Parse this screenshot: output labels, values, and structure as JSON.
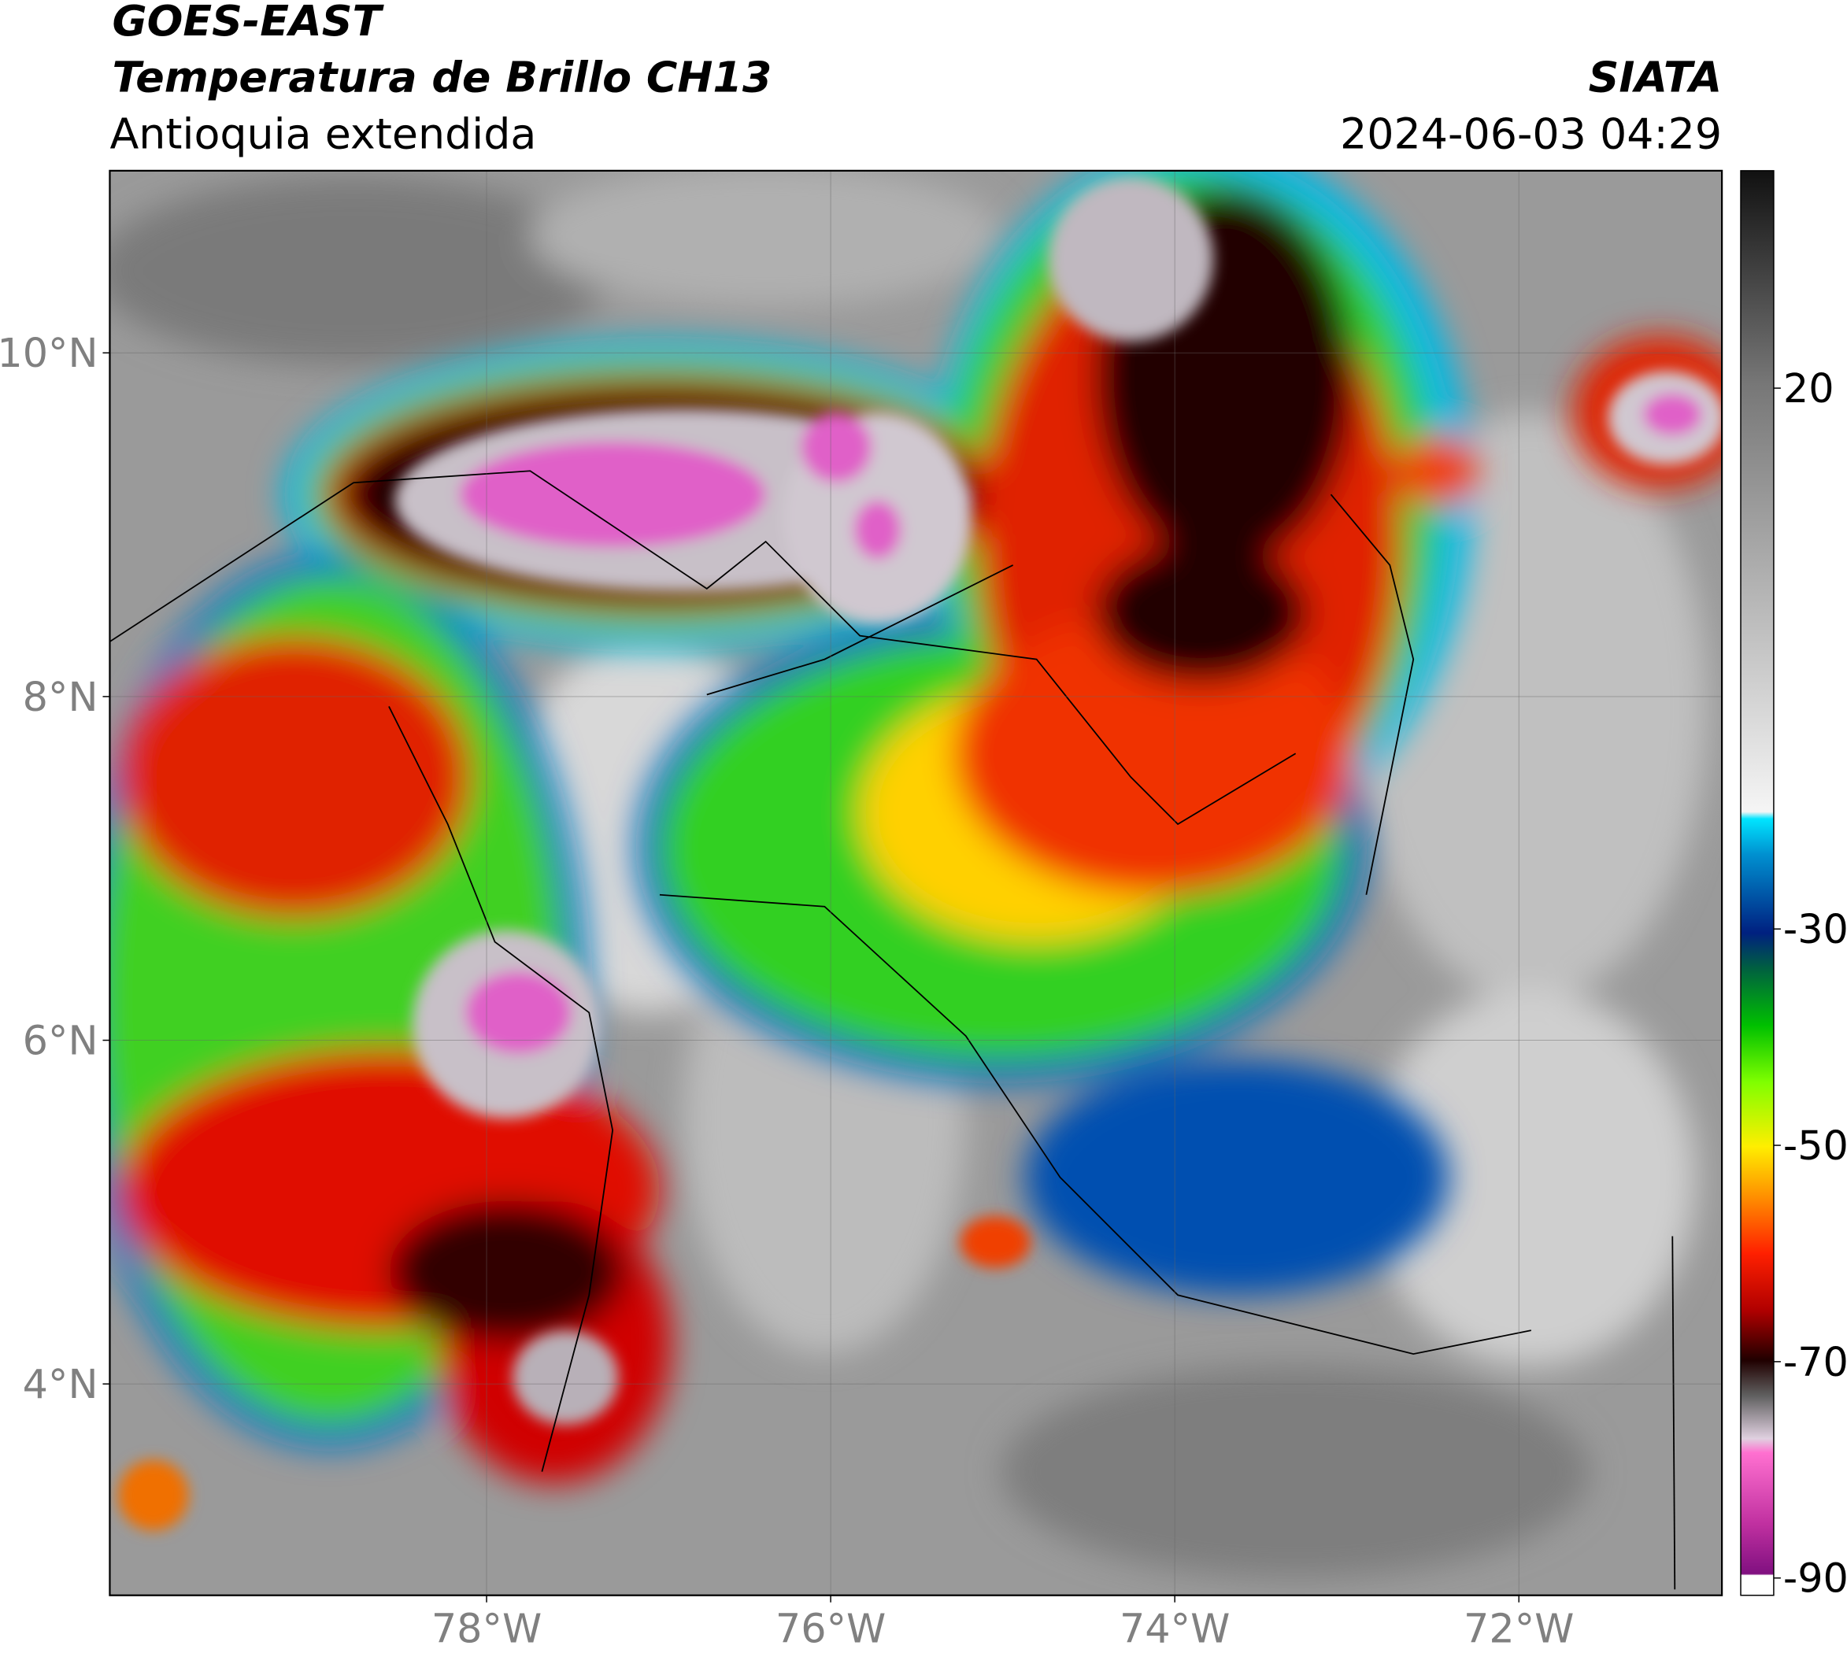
{
  "header": {
    "title": "GOES-EAST",
    "subtitle": "Temperatura de Brillo CH13",
    "region": "Antioquia extendida",
    "source": "SIATA",
    "datetime": "2024-06-03 04:29"
  },
  "map": {
    "xlim": [
      -80.19,
      -70.82
    ],
    "ylim": [
      2.77,
      11.06
    ],
    "xticks": [
      {
        "value": -78,
        "label": "78°W"
      },
      {
        "value": -76,
        "label": "76°W"
      },
      {
        "value": -74,
        "label": "74°W"
      },
      {
        "value": -72,
        "label": "72°W"
      }
    ],
    "yticks": [
      {
        "value": 4,
        "label": "4°N"
      },
      {
        "value": 6,
        "label": "6°N"
      },
      {
        "value": 8,
        "label": "8°N"
      },
      {
        "value": 10,
        "label": "10°N"
      }
    ],
    "grid": true
  },
  "colorbar": {
    "clim": [
      -91.6,
      40.1
    ],
    "ticks": [
      20,
      -30,
      -50,
      -70,
      -90
    ]
  }
}
